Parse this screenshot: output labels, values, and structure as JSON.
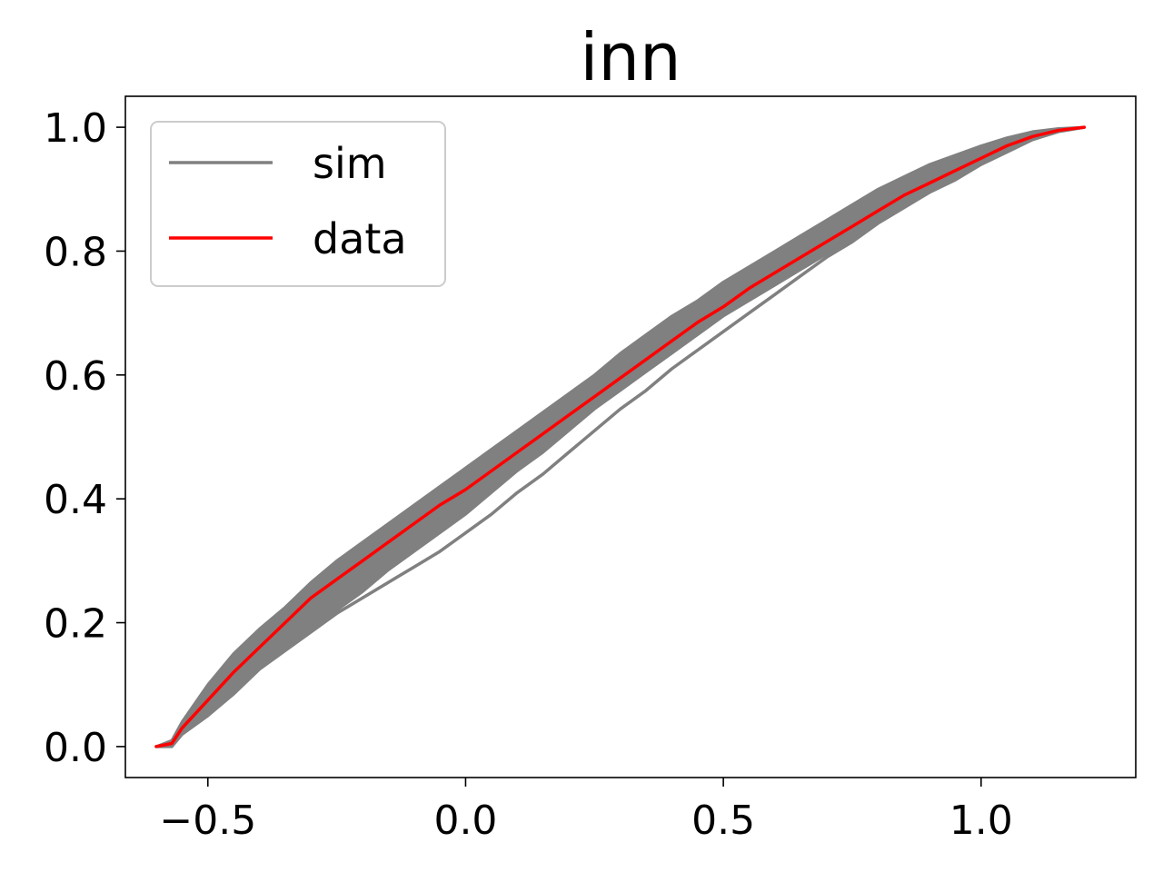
{
  "chart_data": {
    "type": "line",
    "title": "inn",
    "xlabel": "",
    "ylabel": "",
    "xlim": [
      -0.66,
      1.3
    ],
    "ylim": [
      -0.05,
      1.05
    ],
    "xticks": [
      -0.5,
      0.0,
      0.5,
      1.0
    ],
    "xtick_labels": [
      "−0.5",
      "0.0",
      "0.5",
      "1.0"
    ],
    "yticks": [
      0.0,
      0.2,
      0.4,
      0.6,
      0.8,
      1.0
    ],
    "ytick_labels": [
      "0.0",
      "0.2",
      "0.4",
      "0.6",
      "0.8",
      "1.0"
    ],
    "grid": false,
    "legend": {
      "position": "upper-left",
      "entries": [
        "sim",
        "data"
      ]
    },
    "colors": {
      "sim": "#808080",
      "data": "#ff0000"
    },
    "series": [
      {
        "name": "sim",
        "kind": "band-upper",
        "x": [
          -0.6,
          -0.57,
          -0.55,
          -0.5,
          -0.45,
          -0.4,
          -0.35,
          -0.3,
          -0.25,
          -0.2,
          -0.15,
          -0.1,
          -0.05,
          0.0,
          0.05,
          0.1,
          0.15,
          0.2,
          0.25,
          0.3,
          0.35,
          0.4,
          0.45,
          0.5,
          0.55,
          0.6,
          0.65,
          0.7,
          0.75,
          0.8,
          0.85,
          0.9,
          0.95,
          1.0,
          1.05,
          1.1,
          1.15,
          1.2
        ],
        "values": [
          0.0,
          0.01,
          0.04,
          0.1,
          0.15,
          0.19,
          0.225,
          0.265,
          0.3,
          0.33,
          0.36,
          0.39,
          0.42,
          0.45,
          0.48,
          0.51,
          0.54,
          0.57,
          0.6,
          0.635,
          0.665,
          0.695,
          0.72,
          0.75,
          0.775,
          0.8,
          0.825,
          0.85,
          0.875,
          0.9,
          0.92,
          0.94,
          0.955,
          0.97,
          0.983,
          0.993,
          0.998,
          1.0
        ]
      },
      {
        "name": "sim",
        "kind": "band-lower",
        "x": [
          -0.6,
          -0.57,
          -0.55,
          -0.5,
          -0.45,
          -0.4,
          -0.35,
          -0.3,
          -0.25,
          -0.2,
          -0.15,
          -0.1,
          -0.05,
          0.0,
          0.05,
          0.1,
          0.15,
          0.2,
          0.25,
          0.3,
          0.35,
          0.4,
          0.45,
          0.5,
          0.55,
          0.6,
          0.65,
          0.7,
          0.75,
          0.8,
          0.85,
          0.9,
          0.95,
          1.0,
          1.05,
          1.1,
          1.15,
          1.2
        ],
        "values": [
          0.0,
          0.0,
          0.02,
          0.05,
          0.09,
          0.13,
          0.16,
          0.19,
          0.22,
          0.25,
          0.285,
          0.315,
          0.345,
          0.375,
          0.41,
          0.445,
          0.475,
          0.51,
          0.545,
          0.575,
          0.605,
          0.635,
          0.665,
          0.695,
          0.72,
          0.745,
          0.77,
          0.795,
          0.82,
          0.845,
          0.87,
          0.895,
          0.915,
          0.94,
          0.96,
          0.98,
          0.993,
          1.0
        ]
      },
      {
        "name": "sim",
        "kind": "outlier",
        "x": [
          -0.6,
          -0.57,
          -0.55,
          -0.5,
          -0.45,
          -0.4,
          -0.35,
          -0.3,
          -0.25,
          -0.2,
          -0.15,
          -0.1,
          -0.05,
          0.0,
          0.05,
          0.1,
          0.15,
          0.2,
          0.25,
          0.3,
          0.35,
          0.4,
          0.45,
          0.5,
          0.55,
          0.6,
          0.65,
          0.7,
          0.75,
          0.8,
          0.85,
          0.9,
          0.95,
          1.0,
          1.05,
          1.1,
          1.15,
          1.2
        ],
        "values": [
          0.0,
          0.0,
          0.02,
          0.05,
          0.085,
          0.125,
          0.155,
          0.185,
          0.215,
          0.24,
          0.265,
          0.29,
          0.315,
          0.345,
          0.375,
          0.41,
          0.44,
          0.475,
          0.51,
          0.545,
          0.575,
          0.61,
          0.64,
          0.67,
          0.7,
          0.73,
          0.76,
          0.79,
          0.815,
          0.845,
          0.87,
          0.895,
          0.915,
          0.94,
          0.96,
          0.98,
          0.993,
          1.0
        ]
      },
      {
        "name": "data",
        "x": [
          -0.6,
          -0.57,
          -0.55,
          -0.5,
          -0.45,
          -0.4,
          -0.35,
          -0.3,
          -0.25,
          -0.2,
          -0.15,
          -0.1,
          -0.05,
          0.0,
          0.05,
          0.1,
          0.15,
          0.2,
          0.25,
          0.3,
          0.35,
          0.4,
          0.45,
          0.5,
          0.55,
          0.6,
          0.65,
          0.7,
          0.75,
          0.8,
          0.85,
          0.9,
          0.95,
          1.0,
          1.05,
          1.1,
          1.15,
          1.2
        ],
        "values": [
          0.0,
          0.005,
          0.03,
          0.075,
          0.12,
          0.16,
          0.2,
          0.24,
          0.27,
          0.3,
          0.33,
          0.36,
          0.39,
          0.415,
          0.445,
          0.475,
          0.505,
          0.535,
          0.565,
          0.595,
          0.625,
          0.655,
          0.685,
          0.71,
          0.74,
          0.765,
          0.79,
          0.815,
          0.84,
          0.865,
          0.89,
          0.91,
          0.93,
          0.95,
          0.97,
          0.985,
          0.995,
          1.0
        ]
      }
    ]
  }
}
